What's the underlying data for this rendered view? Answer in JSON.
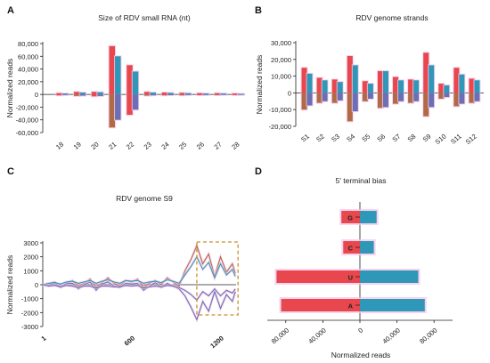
{
  "colors": {
    "red": "#e8474d",
    "brown": "#b06a45",
    "blue": "#2f97b8",
    "purple": "#6b6fb5",
    "highlight": "#f5c8ea",
    "dashbox": "#c9912c"
  },
  "chart_data": [
    {
      "panel": "A",
      "type": "bar",
      "title": "Size of RDV small RNA (nt)",
      "ylabel": "Normalized reads",
      "categories": [
        "18",
        "19",
        "20",
        "21",
        "22",
        "23",
        "24",
        "25",
        "26",
        "27",
        "28"
      ],
      "series": [
        {
          "values": [
            2000,
            4000,
            4000,
            76000,
            46000,
            4000,
            3000,
            2500,
            2000,
            2000,
            1500
          ],
          "neg": [
            -1500,
            -2500,
            -3000,
            -52000,
            -32000,
            -2000,
            -1500,
            -1500,
            -1200,
            -1200,
            -1000
          ]
        },
        {
          "values": [
            1500,
            3000,
            3500,
            60000,
            36000,
            3000,
            2500,
            2000,
            1500,
            1500,
            1000
          ],
          "neg": [
            -1000,
            -2000,
            -2500,
            -40000,
            -24000,
            -1500,
            -1200,
            -1000,
            -1000,
            -800,
            -800
          ]
        }
      ],
      "ylim": [
        -60000,
        80000
      ],
      "yticks": [
        "80,000",
        "60,000",
        "40,000",
        "20,000",
        "0",
        "-20,000",
        "-40,000",
        "-60,000"
      ]
    },
    {
      "panel": "B",
      "type": "bar",
      "title": "RDV genome strands",
      "ylabel": "Normalized reads",
      "categories": [
        "S1",
        "S2",
        "S3",
        "S4",
        "S5",
        "S6",
        "S7",
        "S8",
        "S9",
        "S10",
        "S11",
        "S12"
      ],
      "series": [
        {
          "values": [
            15000,
            9000,
            8000,
            22000,
            7000,
            13000,
            9500,
            8000,
            24000,
            5500,
            15000,
            8500
          ],
          "neg": [
            -10000,
            -6000,
            -6000,
            -17000,
            -5000,
            -9000,
            -6500,
            -6000,
            -14000,
            -3500,
            -8000,
            -6000
          ]
        },
        {
          "values": [
            11500,
            7500,
            6500,
            16500,
            5500,
            13000,
            7500,
            7500,
            16500,
            4500,
            11000,
            7500
          ],
          "neg": [
            -7500,
            -5000,
            -4500,
            -11000,
            -3500,
            -8500,
            -5000,
            -5000,
            -8500,
            -2500,
            -6500,
            -5000
          ]
        }
      ],
      "ylim": [
        -20000,
        30000
      ],
      "yticks": [
        "30,000",
        "20,000",
        "10,000",
        "0",
        "-10,000",
        "-20,000"
      ]
    },
    {
      "panel": "C",
      "type": "line",
      "title": "RDV genome S9",
      "ylabel": "Normalized reads",
      "xlim": [
        0,
        1305
      ],
      "xticks": [
        "1",
        "600",
        "1200"
      ],
      "ylim": [
        -3000,
        3000
      ],
      "yticks": [
        "3000",
        "2000",
        "1000",
        "0",
        "-1000",
        "-2000",
        "-3000"
      ],
      "x": [
        0,
        40,
        80,
        120,
        160,
        200,
        240,
        280,
        320,
        360,
        400,
        440,
        480,
        520,
        560,
        600,
        640,
        680,
        720,
        760,
        800,
        840,
        880,
        920,
        960,
        1000,
        1040,
        1080,
        1120,
        1160,
        1200,
        1240,
        1280,
        1300
      ],
      "series": [
        {
          "values": [
            0,
            50,
            200,
            -100,
            50,
            300,
            -150,
            100,
            400,
            -200,
            150,
            500,
            100,
            -100,
            300,
            200,
            400,
            -200,
            100,
            300,
            0,
            500,
            200,
            -100,
            1000,
            1800,
            2800,
            1500,
            2200,
            600,
            2000,
            900,
            1500,
            800
          ]
        },
        {
          "values": [
            0,
            -50,
            100,
            -200,
            100,
            100,
            -300,
            0,
            200,
            -400,
            50,
            200,
            -100,
            -200,
            100,
            50,
            100,
            -400,
            -100,
            150,
            -200,
            100,
            -100,
            -300,
            -800,
            -1600,
            -2500,
            -1200,
            -1900,
            -500,
            -1700,
            -700,
            -1200,
            -500
          ]
        },
        {
          "values": [
            0,
            100,
            150,
            50,
            200,
            250,
            100,
            200,
            300,
            100,
            250,
            350,
            200,
            100,
            300,
            250,
            300,
            100,
            200,
            250,
            150,
            350,
            250,
            100,
            700,
            1300,
            2000,
            1100,
            1600,
            500,
            1500,
            700,
            1100,
            600
          ]
        },
        {
          "values": [
            0,
            -100,
            -50,
            -150,
            -50,
            -100,
            -200,
            -100,
            -100,
            -250,
            -100,
            -100,
            -150,
            -150,
            -50,
            -100,
            -50,
            -250,
            -150,
            -100,
            -150,
            -50,
            -100,
            -200,
            -400,
            -700,
            -1100,
            -500,
            -800,
            -300,
            -800,
            -400,
            -600,
            -300
          ]
        }
      ]
    },
    {
      "panel": "D",
      "type": "bar",
      "orientation": "horizontal",
      "title": "5' terminal bias",
      "xlabel": "Normalized reads",
      "categories": [
        "G",
        "C",
        "U",
        "A"
      ],
      "left_values": [
        -20000,
        -18000,
        -90000,
        -85000
      ],
      "right_values": [
        18000,
        15000,
        63000,
        70000
      ],
      "xlim": [
        -100000,
        100000
      ],
      "xticks": [
        "80,000",
        "40,000",
        "0",
        "40,000",
        "80,000"
      ]
    }
  ]
}
